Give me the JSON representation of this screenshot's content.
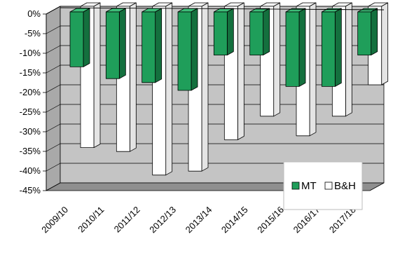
{
  "chart_data": {
    "type": "bar",
    "title": "",
    "xlabel": "",
    "ylabel": "",
    "categories": [
      "2009/10",
      "2010/11",
      "2011/12",
      "2012/13",
      "2013/14",
      "2014/15",
      "2015/16",
      "2016/17",
      "2017/18"
    ],
    "series": [
      {
        "name": "MT",
        "values": [
          -14,
          -17,
          -18,
          -20,
          -11,
          -11,
          -19,
          -19,
          -11
        ],
        "color": "#1f9e5a"
      },
      {
        "name": "B&H",
        "values": [
          -36,
          -37,
          -43,
          -42,
          -34,
          -28,
          -33,
          -28,
          -20
        ],
        "color": "#ffffff"
      }
    ],
    "ylim": [
      -45,
      0
    ],
    "yticks": [
      "0%",
      "-5%",
      "-10%",
      "-15%",
      "-20%",
      "-25%",
      "-30%",
      "-35%",
      "-40%",
      "-45%"
    ],
    "tick_values": [
      0,
      -5,
      -10,
      -15,
      -20,
      -25,
      -30,
      -35,
      -40,
      -45
    ],
    "grid": true,
    "style": "3d-clustered-column",
    "legend_position": "bottom-right-inside",
    "colors": {
      "mt_front": "#1f9e5a",
      "mt_side": "#14703e",
      "mt_top": "#3dbd78",
      "bh_front": "#ffffff",
      "bh_side": "#e4e4e4",
      "bh_top": "#f4f4f4",
      "back_wall": "#c4c4c4",
      "side_wall": "#a9a9a9",
      "floor": "#8f8f8f"
    }
  }
}
